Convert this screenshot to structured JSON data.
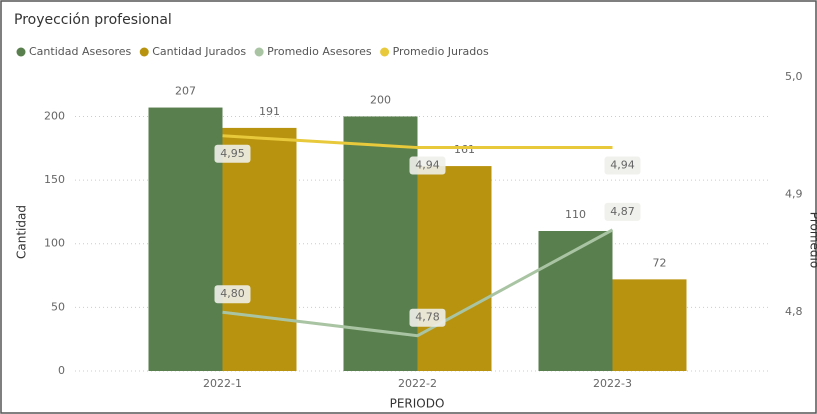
{
  "chart_data": {
    "type": "bar_line",
    "title": "Proyección profesional",
    "x_label": "PERIODO",
    "y_label": "Cantidad",
    "y2_label": "Promedio",
    "categories": [
      "2022-1",
      "2022-2",
      "2022-3"
    ],
    "series": [
      {
        "name": "Cantidad Asesores",
        "type": "bar",
        "color": "#5a7f4e",
        "values": [
          207,
          200,
          110
        ]
      },
      {
        "name": "Cantidad Jurados",
        "type": "bar",
        "color": "#b8930f",
        "values": [
          191,
          161,
          72
        ]
      },
      {
        "name": "Promedio Asesores",
        "type": "line",
        "axis": "y2",
        "color": "#a9c4a3",
        "values": [
          4.8,
          4.78,
          4.87
        ],
        "value_labels": [
          "4,80",
          "4,78",
          "4,87"
        ]
      },
      {
        "name": "Promedio Jurados",
        "type": "line",
        "axis": "y2",
        "color": "#e8c93c",
        "values": [
          4.95,
          4.94,
          4.94
        ],
        "value_labels": [
          "4,95",
          "4,94",
          "4,94"
        ]
      }
    ],
    "ylim": [
      0,
      231
    ],
    "yticks": [
      0,
      50,
      100,
      150,
      200
    ],
    "y2lim": [
      4.75,
      5.0
    ],
    "y2ticks": [
      {
        "value": 4.8,
        "label": "4,8"
      },
      {
        "value": 4.9,
        "label": "4,9"
      },
      {
        "value": 5.0,
        "label": "5,0"
      }
    ],
    "grid": true,
    "legend": "top-left"
  }
}
